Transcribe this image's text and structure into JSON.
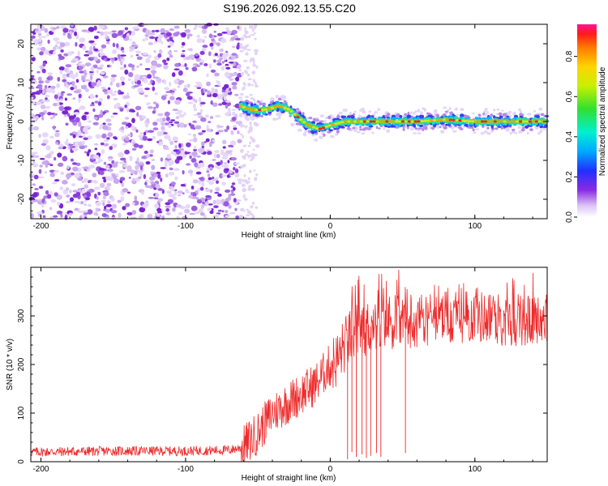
{
  "title": "S196.2026.092.13.55.C20",
  "chart_data": [
    {
      "type": "heatmap",
      "xlabel": "Height of straight line (km)",
      "ylabel": "Frequency (Hz)",
      "xlim": [
        -207,
        150
      ],
      "ylim": [
        -25,
        25
      ],
      "xticks": [
        -200,
        -100,
        0,
        100
      ],
      "yticks": [
        -20,
        -10,
        0,
        10,
        20
      ],
      "colorbar": {
        "label": "Normalized spectral amplitude",
        "range": [
          0,
          0.96
        ],
        "ticks": [
          0.0,
          0.2,
          0.4,
          0.6,
          0.8
        ]
      },
      "ridge": {
        "x": [
          -62,
          -55,
          -45,
          -35,
          -28,
          -22,
          -15,
          -8,
          0,
          10,
          20,
          40,
          60,
          80,
          100,
          120,
          150
        ],
        "y": [
          4,
          3,
          3,
          4,
          3,
          1,
          -1,
          -2,
          -1,
          0,
          0,
          0,
          0,
          0.5,
          0,
          0,
          0
        ]
      },
      "noise_region": [
        -207,
        -62
      ]
    },
    {
      "type": "line",
      "xlabel": "Height of straight line (km)",
      "ylabel": "SNR (10 * v/v)",
      "xlim": [
        -207,
        150
      ],
      "ylim": [
        0,
        400
      ],
      "xticks": [
        -200,
        -100,
        0,
        100
      ],
      "yticks": [
        0,
        100,
        200,
        300
      ],
      "color": "#ee2a2a",
      "trend": {
        "x": [
          -207,
          -150,
          -100,
          -70,
          -60,
          -50,
          -40,
          -30,
          -20,
          -10,
          -5,
          0,
          5,
          10,
          15,
          20,
          25,
          30,
          40,
          60,
          80,
          100,
          120,
          150
        ],
        "y": [
          20,
          22,
          22,
          24,
          30,
          60,
          100,
          120,
          140,
          160,
          180,
          200,
          210,
          240,
          260,
          270,
          275,
          280,
          285,
          290,
          295,
          300,
          292,
          290
        ]
      },
      "dropouts": [
        {
          "x": 12,
          "y": 5
        },
        {
          "x": 15,
          "y": 20
        },
        {
          "x": 18,
          "y": 10
        },
        {
          "x": 22,
          "y": 15
        },
        {
          "x": 25,
          "y": 8
        },
        {
          "x": 28,
          "y": 12
        },
        {
          "x": 32,
          "y": 18
        },
        {
          "x": 35,
          "y": 10
        },
        {
          "x": 52,
          "y": 18
        }
      ]
    }
  ]
}
